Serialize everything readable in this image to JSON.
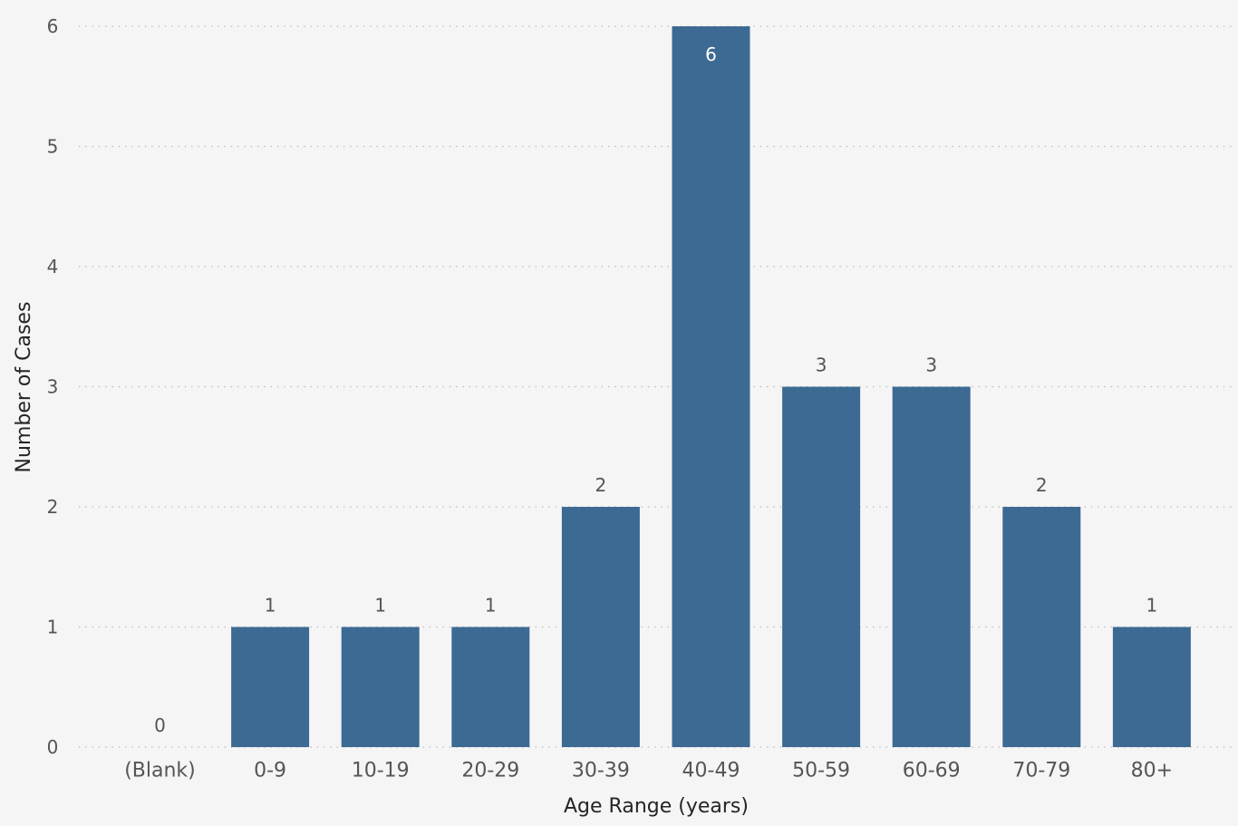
{
  "chart_data": {
    "type": "bar",
    "title": "",
    "xlabel": "Age Range (years)",
    "ylabel": "Number of Cases",
    "categories": [
      "(Blank)",
      "0-9",
      "10-19",
      "20-29",
      "30-39",
      "40-49",
      "50-59",
      "60-69",
      "70-79",
      "80+"
    ],
    "values": [
      0,
      1,
      1,
      1,
      2,
      6,
      3,
      3,
      2,
      1
    ],
    "ylim": [
      0,
      6
    ],
    "yticks": [
      0,
      1,
      2,
      3,
      4,
      5,
      6
    ],
    "grid": true,
    "data_labels": true,
    "legend": "none",
    "colors": {
      "bar": "#3d6a93",
      "background": "#f5f5f5",
      "gridline": "#b4b4b4",
      "tick_text": "#555555",
      "axis_title": "#252525",
      "inside_label": "#ffffff"
    }
  }
}
